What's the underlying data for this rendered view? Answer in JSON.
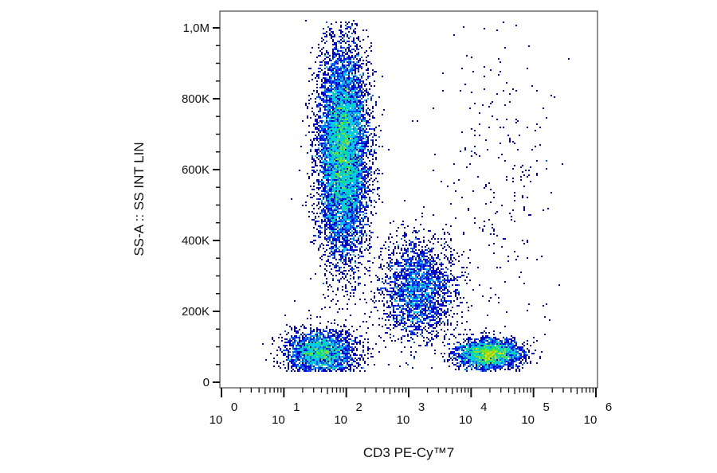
{
  "chart_data": {
    "type": "scatter",
    "subtype": "flow-cytometry-density-dot-plot",
    "title": "",
    "xlabel": "CD3 PE-Cy™7",
    "ylabel": "SS-A :: SS INT LIN",
    "x_scale": "log",
    "y_scale": "linear",
    "xlim": [
      1,
      1000000
    ],
    "ylim": [
      0,
      1030000
    ],
    "x_ticks": [
      {
        "value": 1,
        "base": "10",
        "exp": "0"
      },
      {
        "value": 10,
        "base": "10",
        "exp": "1"
      },
      {
        "value": 100,
        "base": "10",
        "exp": "2"
      },
      {
        "value": 1000,
        "base": "10",
        "exp": "3"
      },
      {
        "value": 10000,
        "base": "10",
        "exp": "4"
      },
      {
        "value": 100000,
        "base": "10",
        "exp": "5"
      },
      {
        "value": 1000000,
        "base": "10",
        "exp": "6"
      }
    ],
    "y_ticks": [
      {
        "value": 0,
        "label": "0"
      },
      {
        "value": 200000,
        "label": "200K"
      },
      {
        "value": 400000,
        "label": "400K"
      },
      {
        "value": 600000,
        "label": "600K"
      },
      {
        "value": 800000,
        "label": "800K"
      },
      {
        "value": 1000000,
        "label": "1,0M"
      }
    ],
    "grid": false,
    "color_scale": [
      "#0000c8",
      "#0050ff",
      "#00c8ff",
      "#00e090",
      "#80e020",
      "#ffd700",
      "#ff8000",
      "#ff0000"
    ],
    "populations": [
      {
        "x_log_center": 1.95,
        "x_log_sd": 0.2,
        "y_center": 650000,
        "y_sd": 150000,
        "density": "high"
      },
      {
        "x_log_center": 1.6,
        "x_log_sd": 0.28,
        "y_center": 85000,
        "y_sd": 30000,
        "density": "medium"
      },
      {
        "x_log_center": 3.15,
        "x_log_sd": 0.3,
        "y_center": 260000,
        "y_sd": 70000,
        "density": "medium"
      },
      {
        "x_log_center": 4.3,
        "x_log_sd": 0.25,
        "y_center": 80000,
        "y_sd": 20000,
        "density": "very-high"
      },
      {
        "x_log_center": 4.4,
        "x_log_sd": 0.45,
        "y_center": 550000,
        "y_sd": 250000,
        "density": "sparse"
      }
    ]
  }
}
